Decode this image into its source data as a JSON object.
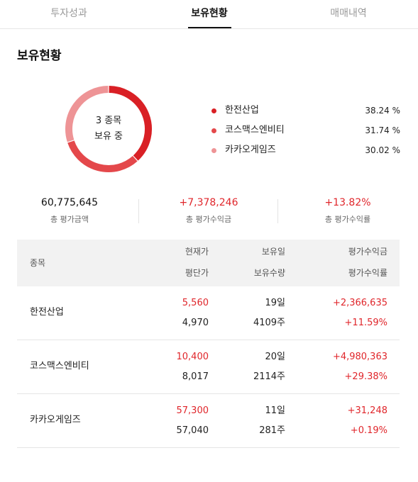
{
  "tabs": [
    {
      "label": "투자성과",
      "active": false
    },
    {
      "label": "보유현황",
      "active": true
    },
    {
      "label": "매매내역",
      "active": false
    }
  ],
  "section_title": "보유현황",
  "donut": {
    "center_line1": "3 종목",
    "center_line2": "보유 중",
    "segments": [
      {
        "name": "한전산업",
        "percent": 38.24,
        "color": "#d92025"
      },
      {
        "name": "코스맥스엔비티",
        "percent": 31.74,
        "color": "#e4484b"
      },
      {
        "name": "카카오게임즈",
        "percent": 30.02,
        "color": "#ee9496"
      }
    ]
  },
  "legend": [
    {
      "name": "한전산업",
      "pct": "38.24 %",
      "color": "#d92025"
    },
    {
      "name": "코스맥스엔비티",
      "pct": "31.74 %",
      "color": "#e4484b"
    },
    {
      "name": "카카오게임즈",
      "pct": "30.02 %",
      "color": "#ee9496"
    }
  ],
  "summary": {
    "total_value": "60,775,645",
    "total_value_label": "총 평가금액",
    "total_profit": "+7,378,246",
    "total_profit_label": "총 평가수익금",
    "total_rate": "+13.82%",
    "total_rate_label": "총 평가수익률"
  },
  "table": {
    "headers": {
      "name": "종목",
      "current_price": "현재가",
      "avg_price": "평단가",
      "days_held": "보유일",
      "quantity": "보유수량",
      "profit": "평가수익금",
      "rate": "평가수익률"
    },
    "rows": [
      {
        "name": "한전산업",
        "current_price": "5,560",
        "avg_price": "4,970",
        "days_held": "19일",
        "quantity": "4109주",
        "profit": "+2,366,635",
        "rate": "+11.59%"
      },
      {
        "name": "코스맥스엔비티",
        "current_price": "10,400",
        "avg_price": "8,017",
        "days_held": "20일",
        "quantity": "2114주",
        "profit": "+4,980,363",
        "rate": "+29.38%"
      },
      {
        "name": "카카오게임즈",
        "current_price": "57,300",
        "avg_price": "57,040",
        "days_held": "11일",
        "quantity": "281주",
        "profit": "+31,248",
        "rate": "+0.19%"
      }
    ]
  },
  "colors": {
    "accent_red": "#e0262b",
    "header_bg": "#f2f2f2"
  }
}
